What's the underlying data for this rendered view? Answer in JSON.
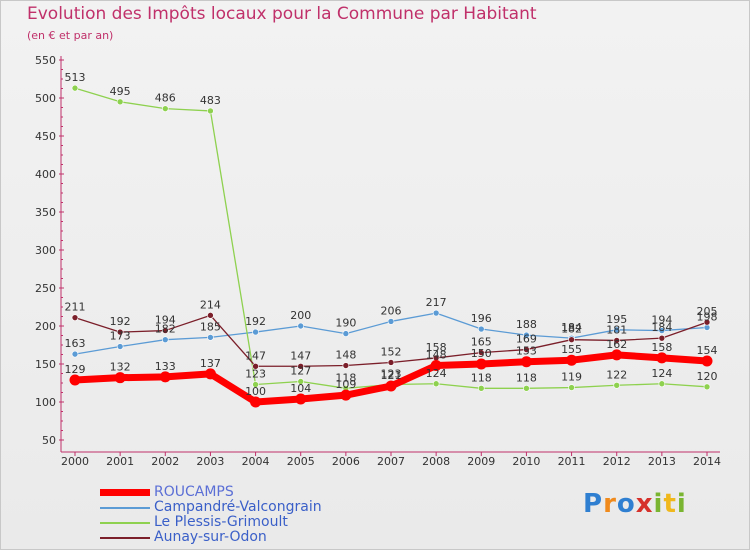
{
  "header": {
    "title": "Evolution des Impôts locaux pour la Commune par Habitant",
    "subtitle": "(en € et par an)"
  },
  "chart_data": {
    "type": "line",
    "title": "Evolution des Impôts locaux pour la Commune par Habitant",
    "subtitle": "(en € et par an)",
    "xlabel": "",
    "ylabel": "",
    "x": [
      "2000",
      "2001",
      "2002",
      "2003",
      "2004",
      "2005",
      "2006",
      "2007",
      "2008",
      "2009",
      "2010",
      "2011",
      "2012",
      "2013",
      "2014"
    ],
    "ylim": [
      50,
      550
    ],
    "yticks": [
      50,
      100,
      150,
      200,
      250,
      300,
      350,
      400,
      450,
      500,
      550
    ],
    "grid": false,
    "legend_position": "bottom-left",
    "series": [
      {
        "name": "ROUCAMPS",
        "color": "#ff0000",
        "width": 7,
        "values": [
          129,
          132,
          133,
          137,
          100,
          104,
          109,
          121,
          148,
          150,
          153,
          155,
          162,
          158,
          154
        ]
      },
      {
        "name": "Campandré-Valcongrain",
        "color": "#5b9bd5",
        "width": 1.3,
        "values": [
          163,
          173,
          182,
          185,
          192,
          200,
          190,
          206,
          217,
          196,
          188,
          184,
          195,
          194,
          198
        ]
      },
      {
        "name": "Le Plessis-Grimoult",
        "color": "#8ed14f",
        "width": 1.3,
        "values": [
          513,
          495,
          486,
          483,
          123,
          127,
          118,
          123,
          124,
          118,
          118,
          119,
          122,
          124,
          120
        ]
      },
      {
        "name": "Aunay-sur-Odon",
        "color": "#7b1f2a",
        "width": 1.3,
        "values": [
          211,
          192,
          194,
          214,
          147,
          147,
          148,
          152,
          158,
          165,
          169,
          182,
          181,
          184,
          205
        ]
      }
    ]
  },
  "legend": {
    "items": [
      {
        "label": "ROUCAMPS",
        "color": "#ff0000"
      },
      {
        "label": "Campandré-Valcongrain",
        "color": "#5b9bd5"
      },
      {
        "label": "Le Plessis-Grimoult",
        "color": "#8ed14f"
      },
      {
        "label": "Aunay-sur-Odon",
        "color": "#7b1f2a"
      }
    ]
  },
  "logo": {
    "letters": [
      "P",
      "r",
      "o",
      "x",
      "i",
      "t",
      "i"
    ],
    "colors": [
      "#2f7fd1",
      "#f08a1c",
      "#2f7fd1",
      "#d6312b",
      "#7ab531",
      "#f0b81c",
      "#7ab531"
    ]
  }
}
